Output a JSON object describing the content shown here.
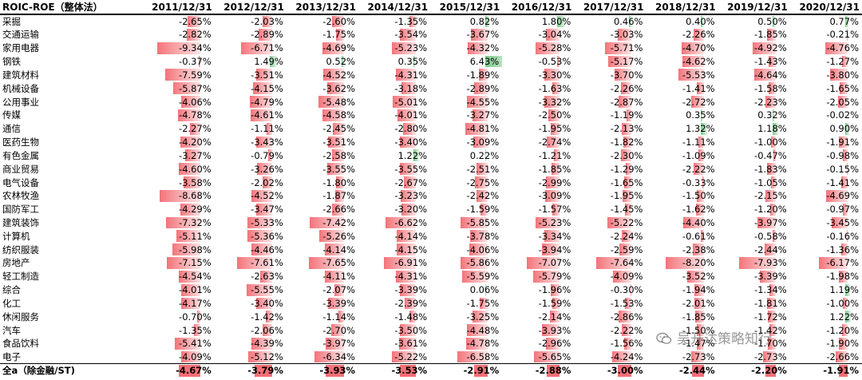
{
  "table": {
    "header_label": "ROIC-ROE（整体法）",
    "years": [
      "2011/12/31",
      "2012/12/31",
      "2013/12/31",
      "2014/12/31",
      "2015/12/31",
      "2016/12/31",
      "2017/12/31",
      "2018/12/31",
      "2019/12/31",
      "2020/12/31"
    ],
    "rows": [
      {
        "name": "采掘",
        "vals": [
          "-2.65%",
          "-2.03%",
          "-2.60%",
          "-1.35%",
          "0.82%",
          "1.80%",
          "0.46%",
          "0.40%",
          "0.50%",
          "0.77%"
        ]
      },
      {
        "name": "交通运输",
        "vals": [
          "-2.82%",
          "-2.89%",
          "-1.75%",
          "-3.54%",
          "-3.67%",
          "-3.04%",
          "-3.03%",
          "-2.26%",
          "-1.85%",
          "-0.21%"
        ]
      },
      {
        "name": "家用电器",
        "vals": [
          "-9.34%",
          "-6.71%",
          "-4.69%",
          "-5.23%",
          "-4.32%",
          "-5.28%",
          "-5.71%",
          "-4.70%",
          "-4.92%",
          "-4.76%"
        ]
      },
      {
        "name": "钢铁",
        "vals": [
          "-0.37%",
          "1.49%",
          "0.52%",
          "0.35%",
          "6.43%",
          "-0.53%",
          "-5.17%",
          "-4.62%",
          "-1.43%",
          "-1.27%"
        ]
      },
      {
        "name": "建筑材料",
        "vals": [
          "-7.59%",
          "-3.51%",
          "-4.52%",
          "-4.31%",
          "-1.89%",
          "-3.30%",
          "-3.70%",
          "-5.53%",
          "-4.64%",
          "-3.80%"
        ]
      },
      {
        "name": "机械设备",
        "vals": [
          "-5.87%",
          "-4.15%",
          "-3.62%",
          "-3.18%",
          "-2.89%",
          "-1.63%",
          "-2.26%",
          "-1.41%",
          "-1.58%",
          "-1.65%"
        ]
      },
      {
        "name": "公用事业",
        "vals": [
          "-4.06%",
          "-4.79%",
          "-5.48%",
          "-5.01%",
          "-4.55%",
          "-3.32%",
          "-2.87%",
          "-2.72%",
          "-2.23%",
          "-2.05%"
        ]
      },
      {
        "name": "传媒",
        "vals": [
          "-4.78%",
          "-4.61%",
          "-4.58%",
          "-4.01%",
          "-3.27%",
          "-2.50%",
          "-1.19%",
          "0.35%",
          "0.32%",
          "-0.02%"
        ]
      },
      {
        "name": "通信",
        "vals": [
          "-2.27%",
          "-1.11%",
          "-2.45%",
          "-2.80%",
          "-4.81%",
          "-1.95%",
          "-2.13%",
          "1.32%",
          "1.18%",
          "0.90%"
        ]
      },
      {
        "name": "医药生物",
        "vals": [
          "-4.20%",
          "-3.43%",
          "-3.51%",
          "-3.40%",
          "-3.09%",
          "-2.74%",
          "-1.82%",
          "-1.11%",
          "-1.00%",
          "-1.91%"
        ]
      },
      {
        "name": "有色金属",
        "vals": [
          "-3.27%",
          "-0.79%",
          "-2.58%",
          "1.22%",
          "0.22%",
          "-1.21%",
          "-2.30%",
          "-1.09%",
          "-0.47%",
          "-0.98%"
        ]
      },
      {
        "name": "商业贸易",
        "vals": [
          "-4.60%",
          "-3.26%",
          "-3.55%",
          "-3.55%",
          "-2.51%",
          "-1.85%",
          "-1.29%",
          "-2.22%",
          "-1.83%",
          "-0.15%"
        ]
      },
      {
        "name": "电气设备",
        "vals": [
          "-3.58%",
          "-2.02%",
          "-1.80%",
          "-2.67%",
          "-2.75%",
          "-2.99%",
          "-1.65%",
          "-0.33%",
          "-1.05%",
          "-1.41%"
        ]
      },
      {
        "name": "农林牧渔",
        "vals": [
          "-8.68%",
          "-4.52%",
          "-1.87%",
          "-3.23%",
          "-2.42%",
          "-3.09%",
          "-1.95%",
          "-1.50%",
          "-2.15%",
          "-4.69%"
        ]
      },
      {
        "name": "国防军工",
        "vals": [
          "-4.29%",
          "-3.47%",
          "-2.66%",
          "-3.20%",
          "-1.59%",
          "-1.57%",
          "-1.45%",
          "-1.62%",
          "-1.20%",
          "-0.97%"
        ]
      },
      {
        "name": "建筑装饰",
        "vals": [
          "-7.32%",
          "-5.33%",
          "-7.42%",
          "-6.62%",
          "-5.85%",
          "-5.23%",
          "-5.22%",
          "-4.40%",
          "-3.97%",
          "-3.45%"
        ]
      },
      {
        "name": "计算机",
        "vals": [
          "-5.11%",
          "-5.36%",
          "-5.26%",
          "-4.14%",
          "-3.78%",
          "-3.34%",
          "-2.24%",
          "-0.61%",
          "-0.58%",
          "-0.16%"
        ]
      },
      {
        "name": "纺织服装",
        "vals": [
          "-5.98%",
          "-4.46%",
          "-4.14%",
          "-4.15%",
          "-4.06%",
          "-3.94%",
          "-2.59%",
          "-2.38%",
          "-2.44%",
          "-1.36%"
        ]
      },
      {
        "name": "房地产",
        "vals": [
          "-7.15%",
          "-7.61%",
          "-7.65%",
          "-6.91%",
          "-5.86%",
          "-7.07%",
          "-7.64%",
          "-8.20%",
          "-7.93%",
          "-6.17%"
        ]
      },
      {
        "name": "轻工制造",
        "vals": [
          "-4.54%",
          "-2.63%",
          "-4.11%",
          "-4.31%",
          "-5.59%",
          "-5.79%",
          "-4.09%",
          "-3.52%",
          "-3.39%",
          "-1.98%"
        ]
      },
      {
        "name": "综合",
        "vals": [
          "-4.01%",
          "-5.55%",
          "-2.07%",
          "-3.39%",
          "0.06%",
          "-1.96%",
          "-0.30%",
          "-1.94%",
          "-1.34%",
          "1.19%"
        ]
      },
      {
        "name": "化工",
        "vals": [
          "-4.17%",
          "-3.40%",
          "-3.39%",
          "-2.39%",
          "-1.75%",
          "-1.59%",
          "-1.53%",
          "-2.01%",
          "-1.81%",
          "-1.00%"
        ]
      },
      {
        "name": "休闲服务",
        "vals": [
          "-0.70%",
          "-1.42%",
          "-1.14%",
          "-1.48%",
          "-3.25%",
          "-2.14%",
          "-2.86%",
          "-1.85%",
          "-1.72%",
          "1.22%"
        ]
      },
      {
        "name": "汽车",
        "vals": [
          "-1.35%",
          "-2.06%",
          "-2.70%",
          "-3.50%",
          "-4.48%",
          "-3.93%",
          "-2.22%",
          "-1.50%",
          "-1.42%",
          "-1.20%"
        ]
      },
      {
        "name": "食品饮料",
        "vals": [
          "-5.41%",
          "-4.39%",
          "-3.97%",
          "-3.61%",
          "-4.78%",
          "-2.96%",
          "-1.56%",
          "-1.47%",
          "-1.70%",
          "-1.90%"
        ]
      },
      {
        "name": "电子",
        "vals": [
          "-4.09%",
          "-5.12%",
          "-6.34%",
          "-5.22%",
          "-6.58%",
          "-5.65%",
          "-4.24%",
          "-2.73%",
          "-2.73%",
          "-2.66%"
        ]
      }
    ],
    "total": {
      "name": "全a（除金融/ST)",
      "vals": [
        "-4.67%",
        "-3.79%",
        "-3.93%",
        "-3.53%",
        "-2.91%",
        "-2.88%",
        "-3.00%",
        "-2.44%",
        "-2.20%",
        "-1.91%"
      ]
    }
  },
  "watermark": {
    "text": "吴开达策略知行"
  }
}
